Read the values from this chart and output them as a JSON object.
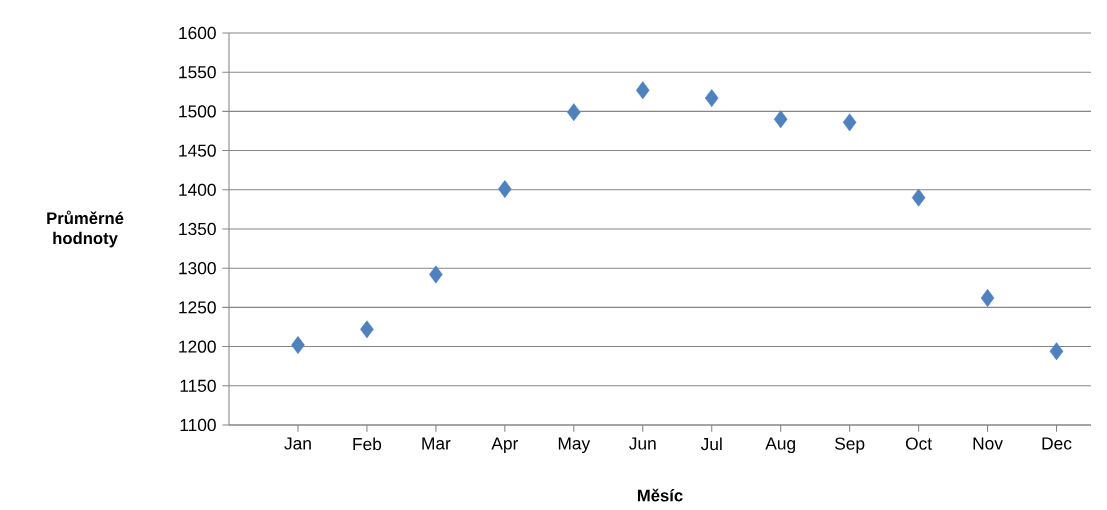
{
  "chart_data": {
    "type": "scatter",
    "xlabel": "Měsíc",
    "ylabel": "Průměrné hodnoty",
    "categories": [
      "Jan",
      "Feb",
      "Mar",
      "Apr",
      "May",
      "Jun",
      "Jul",
      "Aug",
      "Sep",
      "Oct",
      "Nov",
      "Dec"
    ],
    "series": [
      {
        "color": "#4f81bd",
        "values": [
          1202,
          1222,
          1292,
          1401,
          1499,
          1527,
          1517,
          1490,
          1486,
          1390,
          1262,
          1194
        ]
      }
    ],
    "ylim": [
      1100,
      1600
    ],
    "yticks": [
      1100,
      1150,
      1200,
      1250,
      1300,
      1350,
      1400,
      1450,
      1500,
      1550,
      1600
    ],
    "grid": "y",
    "marker": "diamond"
  }
}
